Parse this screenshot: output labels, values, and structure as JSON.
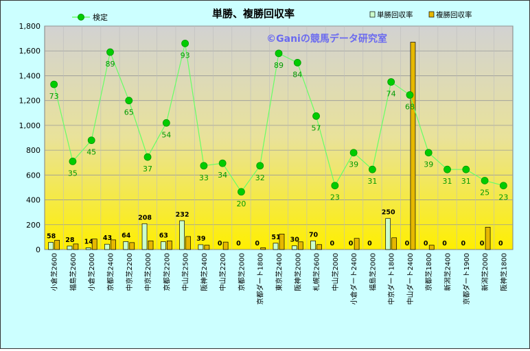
{
  "chart_data": {
    "type": "bar",
    "title": "単勝、複勝回収率",
    "watermark": "©Ganiの競馬データ研究室",
    "categories": [
      "小倉芝2600",
      "福島芝2600",
      "小倉芝2000",
      "京都芝2400",
      "中京芝2200",
      "中京芝2000",
      "京都芝2200",
      "中山芝2500",
      "阪神芝2400",
      "中山芝2200",
      "京都芝2000",
      "京都ダート1800",
      "東京芝2400",
      "阪神芝2000",
      "札幌芝2600",
      "中山芝2000",
      "小倉ダート2400",
      "福島芝2000",
      "中京ダート1800",
      "中山ダート2400",
      "京都芝1800",
      "新潟芝2400",
      "京都ダート1900",
      "新潟芝2000",
      "阪神芝1800"
    ],
    "ylim": [
      0,
      1800
    ],
    "yticks": [
      "0",
      "200",
      "400",
      "600",
      "800",
      "1,000",
      "1,200",
      "1,400",
      "1,600",
      "1,800"
    ],
    "series": [
      {
        "name": "単勝回収率",
        "kind": "bar",
        "color": "#ccffcc",
        "values": [
          58,
          28,
          14,
          43,
          64,
          208,
          63,
          232,
          39,
          0,
          0,
          0,
          51,
          30,
          70,
          0,
          0,
          0,
          250,
          0,
          0,
          0,
          0,
          0,
          0
        ],
        "labels": [
          "58",
          "28",
          "14",
          "43",
          "64",
          "208",
          "63",
          "232",
          "39",
          "0",
          "0",
          "0",
          "51",
          "30",
          "70",
          "0",
          "0",
          "0",
          "250",
          "0",
          "0",
          "0",
          "0",
          "0",
          "0"
        ]
      },
      {
        "name": "複勝回収率",
        "kind": "bar",
        "color": "#e6b800",
        "values": [
          75,
          45,
          85,
          78,
          56,
          70,
          70,
          105,
          35,
          60,
          0,
          15,
          125,
          62,
          40,
          0,
          90,
          0,
          95,
          1670,
          35,
          0,
          0,
          180,
          0
        ]
      },
      {
        "name": "検定",
        "kind": "line",
        "color": "#00cc00",
        "values": [
          1330,
          710,
          880,
          1590,
          1200,
          745,
          1020,
          1660,
          675,
          695,
          465,
          675,
          1580,
          1505,
          1075,
          515,
          780,
          645,
          1350,
          1245,
          780,
          645,
          645,
          555,
          515
        ],
        "labels": [
          "73",
          "35",
          "45",
          "89",
          "65",
          "37",
          "54",
          "93",
          "33",
          "34",
          "20",
          "32",
          "89",
          "84",
          "57",
          "23",
          "39",
          "31",
          "74",
          "68",
          "39",
          "31",
          "31",
          "25",
          "23"
        ]
      }
    ]
  }
}
